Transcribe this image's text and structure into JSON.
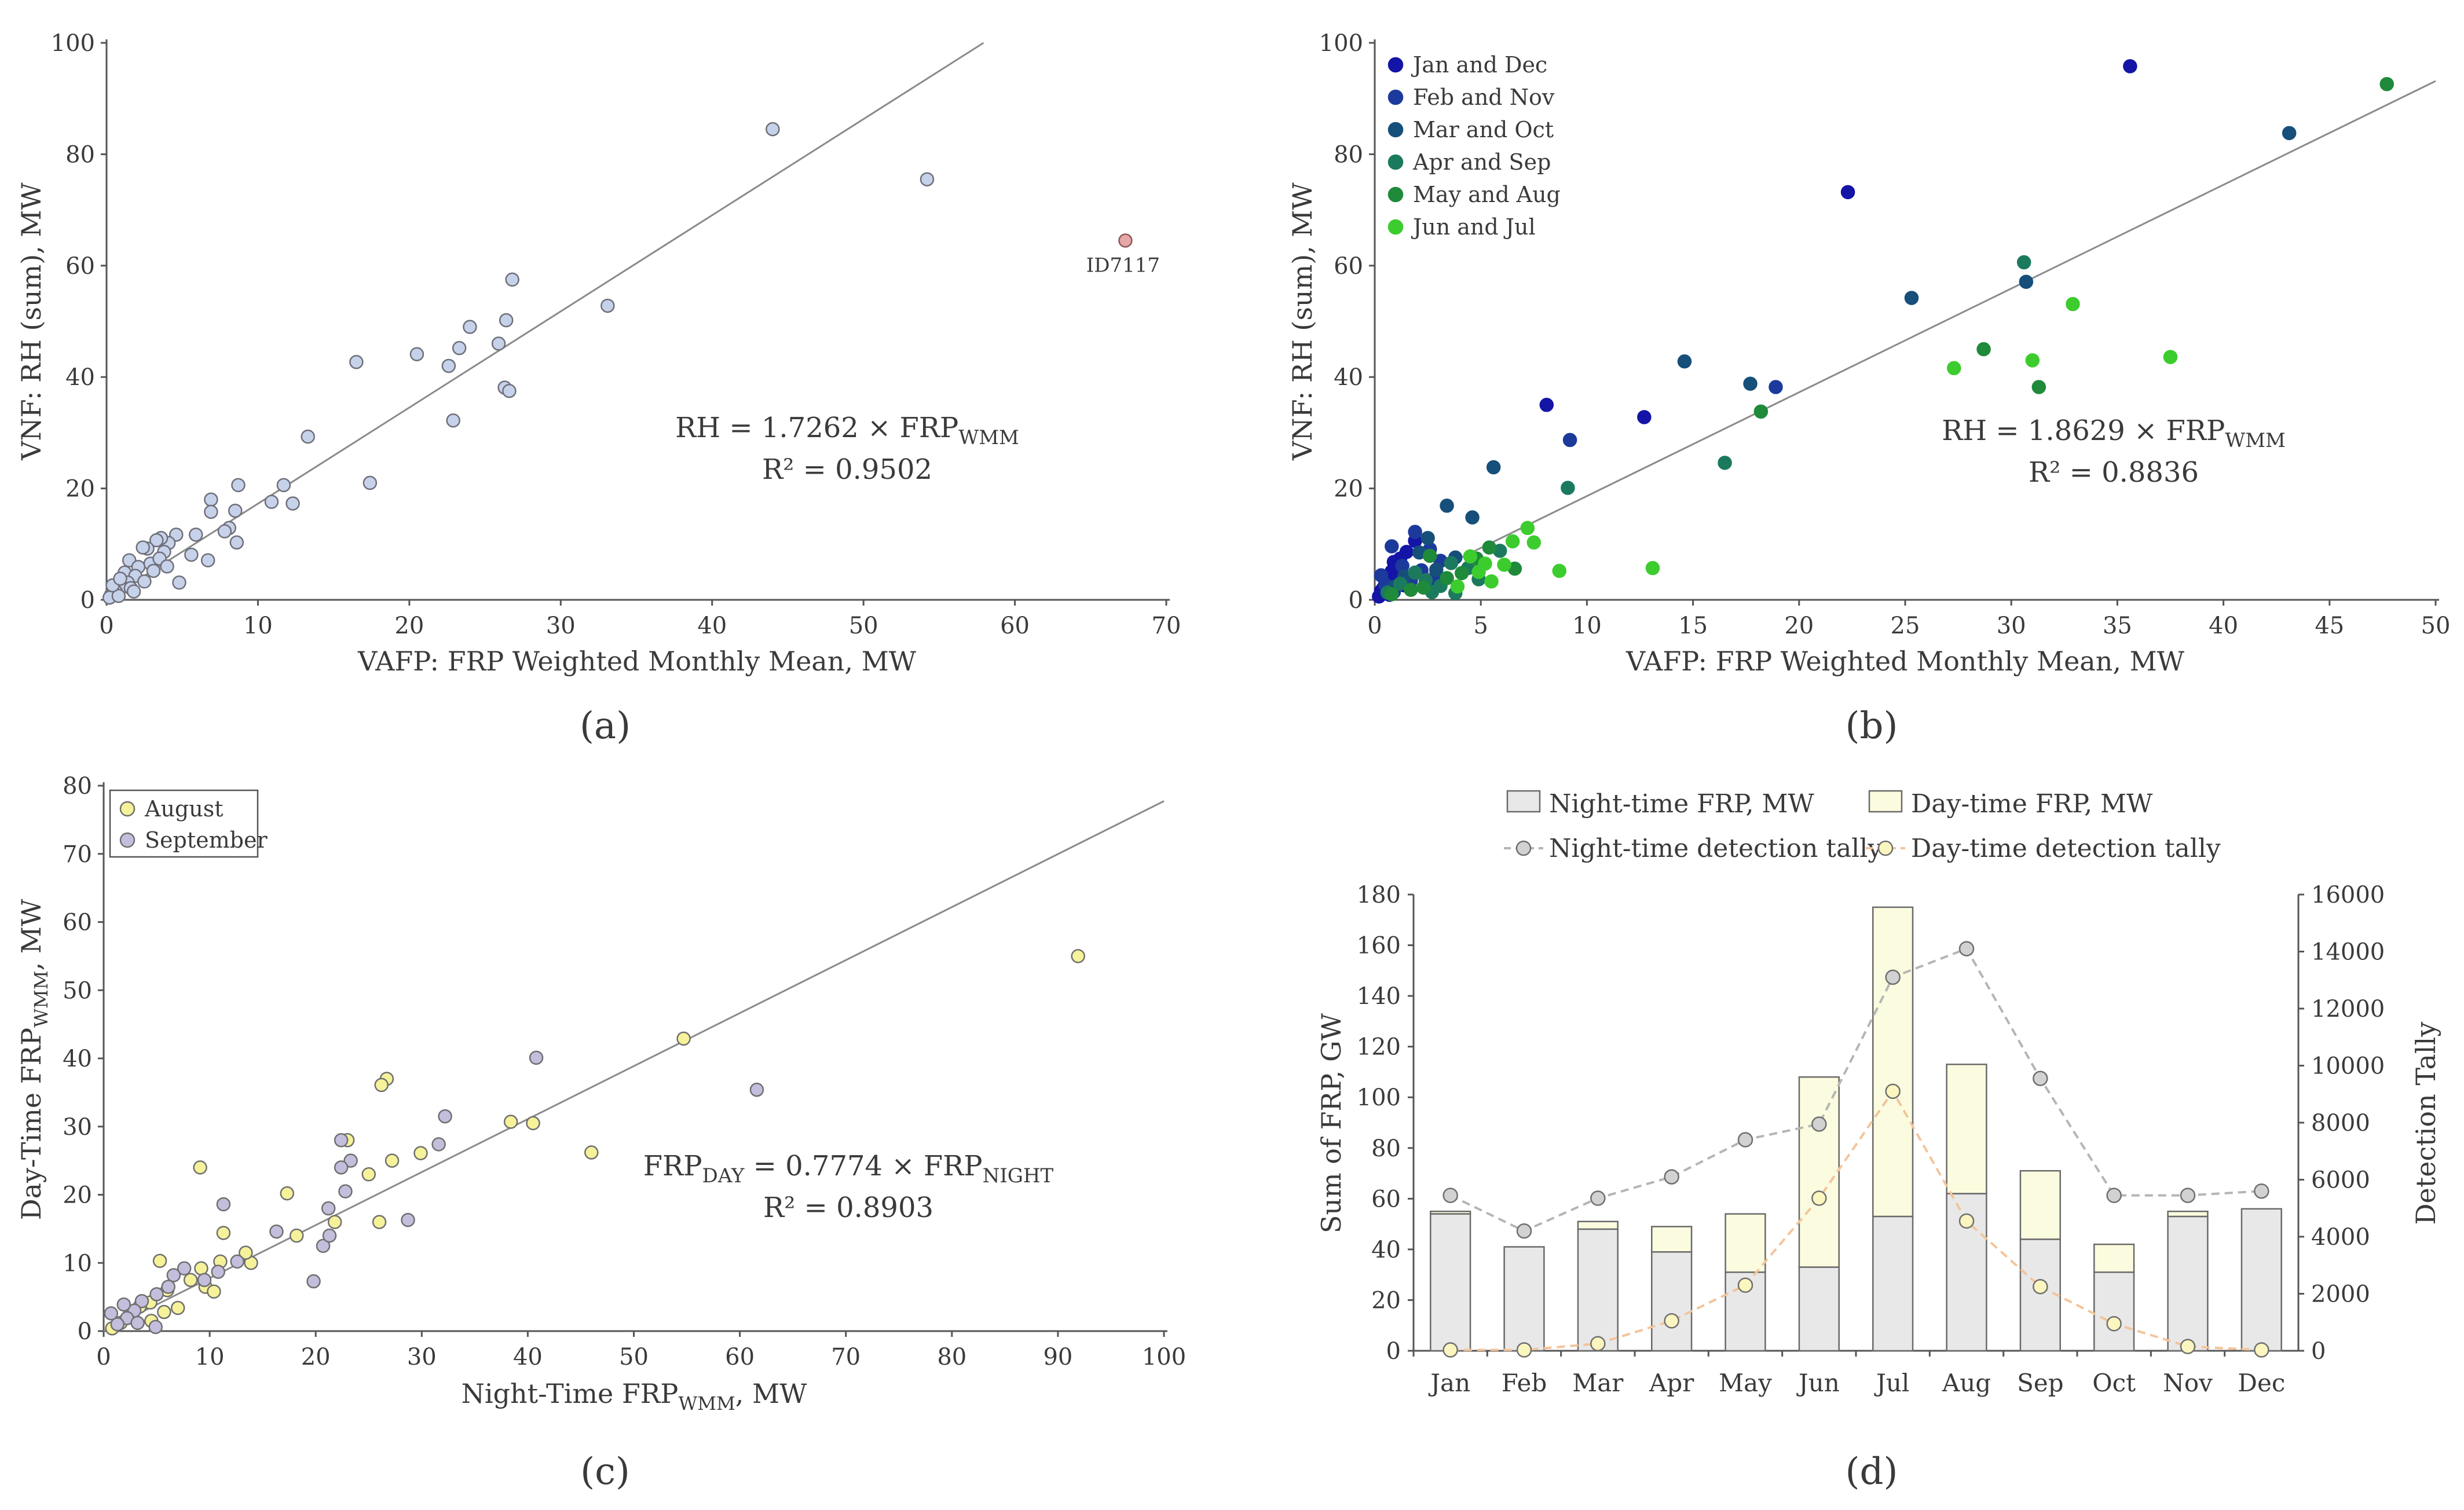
{
  "panel_labels": [
    "(a)",
    "(b)",
    "(c)",
    "(d)"
  ],
  "chart_data": [
    {
      "id": "a",
      "type": "scatter",
      "xlabel": "VAFP: FRP Weighted Monthly Mean, MW",
      "ylabel": "VNF: RH (sum), MW",
      "xlim": [
        0,
        70
      ],
      "ylim": [
        0,
        100
      ],
      "xticks": [
        0,
        10,
        20,
        30,
        40,
        50,
        60,
        70
      ],
      "yticks": [
        0,
        20,
        40,
        60,
        80,
        100
      ],
      "fit": {
        "slope": 1.7262
      },
      "equation": {
        "lhs": "RH = 1.7262 × FRP",
        "sub": "WMM"
      },
      "r2": "R² = 0.9502",
      "outlier": {
        "x": 67.3,
        "y": 64.5,
        "label": "ID7117",
        "color": "#e8a6a6"
      },
      "point_color": "#c6d2ea",
      "points": [
        [
          44.0,
          84.5
        ],
        [
          54.2,
          75.5
        ],
        [
          33.1,
          52.8
        ],
        [
          26.8,
          57.5
        ],
        [
          26.4,
          50.2
        ],
        [
          24.0,
          49.0
        ],
        [
          20.5,
          44.1
        ],
        [
          23.3,
          45.2
        ],
        [
          22.6,
          42.0
        ],
        [
          25.9,
          46.0
        ],
        [
          16.5,
          42.7
        ],
        [
          26.3,
          38.1
        ],
        [
          26.6,
          37.5
        ],
        [
          22.9,
          32.2
        ],
        [
          13.3,
          29.3
        ],
        [
          17.4,
          21.0
        ],
        [
          11.7,
          20.6
        ],
        [
          10.9,
          17.6
        ],
        [
          12.3,
          17.3
        ],
        [
          8.7,
          20.6
        ],
        [
          6.9,
          18.0
        ],
        [
          6.9,
          15.8
        ],
        [
          8.5,
          16.0
        ],
        [
          8.1,
          12.9
        ],
        [
          7.8,
          12.3
        ],
        [
          8.6,
          10.3
        ],
        [
          5.9,
          11.7
        ],
        [
          5.6,
          8.1
        ],
        [
          6.7,
          7.1
        ],
        [
          4.8,
          3.1
        ],
        [
          4.6,
          11.7
        ],
        [
          4.1,
          10.2
        ],
        [
          3.6,
          11.1
        ],
        [
          3.3,
          10.7
        ],
        [
          2.7,
          9.2
        ],
        [
          2.4,
          9.4
        ],
        [
          3.8,
          8.6
        ],
        [
          2.9,
          6.5
        ],
        [
          3.1,
          5.2
        ],
        [
          1.5,
          7.1
        ],
        [
          1.2,
          4.9
        ],
        [
          2.1,
          5.9
        ],
        [
          1.9,
          4.3
        ],
        [
          1.4,
          3.1
        ],
        [
          1.0,
          2.3
        ],
        [
          0.6,
          1.5
        ],
        [
          0.3,
          0.9
        ],
        [
          0.2,
          0.4
        ],
        [
          0.8,
          0.7
        ],
        [
          1.6,
          2.1
        ],
        [
          2.5,
          3.3
        ],
        [
          0.4,
          2.6
        ],
        [
          0.9,
          3.8
        ],
        [
          3.5,
          7.4
        ],
        [
          1.8,
          1.5
        ],
        [
          4.0,
          6.0
        ]
      ]
    },
    {
      "id": "b",
      "type": "scatter",
      "xlabel": "VAFP: FRP Weighted Monthly Mean, MW",
      "ylabel": "VNF: RH (sum), MW",
      "xlim": [
        0,
        50
      ],
      "ylim": [
        0,
        100
      ],
      "xticks": [
        0,
        5,
        10,
        15,
        20,
        25,
        30,
        35,
        40,
        45,
        50
      ],
      "yticks": [
        0,
        20,
        40,
        60,
        80,
        100
      ],
      "fit": {
        "slope": 1.8629
      },
      "equation": {
        "lhs": "RH = 1.8629 × FRP",
        "sub": "WMM"
      },
      "r2": "R² = 0.8836",
      "legend_position": "top-left",
      "series": [
        {
          "name": "Jan and Dec",
          "color": "#1414a6",
          "points": [
            [
              35.6,
              95.8
            ],
            [
              22.3,
              73.2
            ],
            [
              12.7,
              32.8
            ],
            [
              8.1,
              35.0
            ],
            [
              1.9,
              10.6
            ],
            [
              1.2,
              7.4
            ],
            [
              0.8,
              5.1
            ],
            [
              0.5,
              3.2
            ],
            [
              0.3,
              1.6
            ],
            [
              0.2,
              0.6
            ],
            [
              1.5,
              8.6
            ],
            [
              0.9,
              6.8
            ],
            [
              1.1,
              4.3
            ],
            [
              0.4,
              2.1
            ],
            [
              0.6,
              3.9
            ],
            [
              1.4,
              2.6
            ],
            [
              0.7,
              0.9
            ]
          ]
        },
        {
          "name": "Feb and Nov",
          "color": "#1c3a9c",
          "points": [
            [
              18.9,
              38.2
            ],
            [
              9.2,
              28.7
            ],
            [
              1.9,
              12.2
            ],
            [
              0.8,
              9.6
            ],
            [
              2.6,
              9.1
            ],
            [
              1.3,
              6.1
            ],
            [
              3.1,
              7.0
            ],
            [
              2.2,
              5.3
            ],
            [
              0.5,
              2.7
            ],
            [
              0.9,
              1.4
            ],
            [
              1.7,
              3.4
            ],
            [
              0.3,
              4.4
            ],
            [
              2.8,
              3.7
            ]
          ]
        },
        {
          "name": "Mar and Oct",
          "color": "#164f7a",
          "points": [
            [
              43.1,
              83.8
            ],
            [
              25.3,
              54.2
            ],
            [
              30.7,
              57.1
            ],
            [
              17.7,
              38.8
            ],
            [
              14.6,
              42.8
            ],
            [
              5.6,
              23.8
            ],
            [
              3.4,
              16.9
            ],
            [
              4.6,
              14.8
            ],
            [
              2.5,
              11.1
            ],
            [
              2.1,
              8.5
            ],
            [
              3.8,
              7.6
            ],
            [
              2.9,
              5.4
            ],
            [
              1.4,
              4.2
            ],
            [
              0.9,
              2.3
            ]
          ]
        },
        {
          "name": "Apr and Sep",
          "color": "#1b7a5e",
          "points": [
            [
              30.6,
              60.6
            ],
            [
              16.5,
              24.6
            ],
            [
              9.1,
              20.1
            ],
            [
              5.9,
              8.8
            ],
            [
              4.4,
              5.7
            ],
            [
              3.6,
              6.6
            ],
            [
              2.4,
              3.5
            ],
            [
              1.9,
              4.9
            ],
            [
              3.1,
              2.5
            ],
            [
              1.2,
              2.9
            ],
            [
              0.6,
              1.3
            ],
            [
              2.7,
              1.4
            ],
            [
              4.9,
              3.7
            ],
            [
              3.8,
              1.2
            ]
          ]
        },
        {
          "name": "May and Aug",
          "color": "#1e8a3a",
          "points": [
            [
              47.7,
              92.6
            ],
            [
              31.3,
              38.2
            ],
            [
              18.2,
              33.8
            ],
            [
              28.7,
              45.0
            ],
            [
              5.4,
              9.4
            ],
            [
              4.8,
              7.4
            ],
            [
              6.6,
              5.6
            ],
            [
              3.4,
              3.9
            ],
            [
              2.6,
              7.9
            ],
            [
              1.7,
              1.8
            ],
            [
              4.1,
              4.8
            ],
            [
              2.3,
              2.2
            ],
            [
              0.8,
              1.0
            ]
          ]
        },
        {
          "name": "Jun and Jul",
          "color": "#3ccc2e",
          "points": [
            [
              32.9,
              53.1
            ],
            [
              27.3,
              41.6
            ],
            [
              31.0,
              43.0
            ],
            [
              37.5,
              43.6
            ],
            [
              13.1,
              5.7
            ],
            [
              7.2,
              12.9
            ],
            [
              7.5,
              10.3
            ],
            [
              6.5,
              10.5
            ],
            [
              8.7,
              5.2
            ],
            [
              5.2,
              6.5
            ],
            [
              4.5,
              7.8
            ],
            [
              6.1,
              6.3
            ],
            [
              5.5,
              3.3
            ],
            [
              3.9,
              2.4
            ],
            [
              4.9,
              5.0
            ]
          ]
        }
      ]
    },
    {
      "id": "c",
      "type": "scatter",
      "xlabel": "Night-Time FRP",
      "xlabel_sub": "WMM",
      "xlabel_tail": ", MW",
      "ylabel": "Day-Time FRP",
      "ylabel_sub": "WMM",
      "ylabel_tail": ", MW",
      "xlim": [
        0,
        100
      ],
      "ylim": [
        0,
        80
      ],
      "xticks": [
        0,
        10,
        20,
        30,
        40,
        50,
        60,
        70,
        80,
        90,
        100
      ],
      "yticks": [
        0,
        10,
        20,
        30,
        40,
        50,
        60,
        70,
        80
      ],
      "fit": {
        "slope": 0.7774
      },
      "equation": {
        "lhs": "FRP",
        "lhs_sub": "DAY",
        "mid": " = 0.7774 × FRP",
        "rhs_sub": "NIGHT"
      },
      "r2": "R² = 0.8903",
      "legend_position": "top-left",
      "series": [
        {
          "name": "August",
          "color": "#f5f29a",
          "points": [
            [
              91.9,
              55.0
            ],
            [
              54.7,
              42.9
            ],
            [
              38.4,
              30.7
            ],
            [
              40.5,
              30.5
            ],
            [
              46.0,
              26.2
            ],
            [
              26.7,
              37.0
            ],
            [
              26.2,
              36.1
            ],
            [
              23.0,
              28.0
            ],
            [
              27.2,
              25.0
            ],
            [
              29.9,
              26.1
            ],
            [
              25.0,
              23.0
            ],
            [
              9.1,
              24.0
            ],
            [
              17.3,
              20.2
            ],
            [
              21.8,
              16.0
            ],
            [
              26.0,
              16.0
            ],
            [
              18.2,
              14.0
            ],
            [
              11.3,
              14.4
            ],
            [
              13.9,
              10.0
            ],
            [
              13.4,
              11.5
            ],
            [
              11.0,
              10.2
            ],
            [
              9.2,
              9.2
            ],
            [
              8.2,
              7.5
            ],
            [
              9.6,
              6.5
            ],
            [
              10.4,
              5.8
            ],
            [
              5.3,
              10.3
            ],
            [
              6.0,
              6.0
            ],
            [
              4.4,
              4.2
            ],
            [
              3.4,
              3.6
            ],
            [
              2.5,
              2.5
            ],
            [
              1.6,
              1.2
            ],
            [
              0.8,
              0.4
            ],
            [
              5.7,
              2.8
            ],
            [
              7.0,
              3.4
            ],
            [
              4.5,
              1.5
            ]
          ]
        },
        {
          "name": "September",
          "color": "#c4bedd",
          "points": [
            [
              61.6,
              35.4
            ],
            [
              40.8,
              40.1
            ],
            [
              32.2,
              31.5
            ],
            [
              31.6,
              27.4
            ],
            [
              22.4,
              28.0
            ],
            [
              23.3,
              25.0
            ],
            [
              22.4,
              24.0
            ],
            [
              22.8,
              20.5
            ],
            [
              28.7,
              16.3
            ],
            [
              21.2,
              18.0
            ],
            [
              11.3,
              18.6
            ],
            [
              16.3,
              14.6
            ],
            [
              19.8,
              7.3
            ],
            [
              20.7,
              12.5
            ],
            [
              21.3,
              14.0
            ],
            [
              12.6,
              10.2
            ],
            [
              10.8,
              8.7
            ],
            [
              9.5,
              7.5
            ],
            [
              7.6,
              9.2
            ],
            [
              6.6,
              8.2
            ],
            [
              6.1,
              6.5
            ],
            [
              5.0,
              5.4
            ],
            [
              3.6,
              4.4
            ],
            [
              2.9,
              3.0
            ],
            [
              2.2,
              1.9
            ],
            [
              1.3,
              1.0
            ],
            [
              0.7,
              2.6
            ],
            [
              3.2,
              1.2
            ],
            [
              4.9,
              0.6
            ],
            [
              1.9,
              3.9
            ]
          ]
        }
      ]
    },
    {
      "id": "d",
      "type": "bar",
      "categories": [
        "Jan",
        "Feb",
        "Mar",
        "Apr",
        "May",
        "Jun",
        "Jul",
        "Aug",
        "Sep",
        "Oct",
        "Nov",
        "Dec"
      ],
      "ylabel": "Sum of FRP, GW",
      "y2label": "Detection Tally",
      "ylim": [
        0,
        180
      ],
      "y2lim": [
        0,
        16000
      ],
      "yticks": [
        0,
        20,
        40,
        60,
        80,
        100,
        120,
        140,
        160,
        180
      ],
      "y2ticks": [
        0,
        2000,
        4000,
        6000,
        8000,
        10000,
        12000,
        14000,
        16000
      ],
      "legend_position": "top",
      "series": [
        {
          "name": "Night-time FRP, MW",
          "kind": "bar",
          "color": "#e8e8e8",
          "values": [
            54,
            41,
            48,
            39,
            31,
            33,
            53,
            62,
            44,
            31,
            53,
            56
          ]
        },
        {
          "name": "Day-time FRP, MW",
          "kind": "bar",
          "color": "#fbfbdf",
          "values": [
            1,
            0,
            3,
            10,
            23,
            75,
            122,
            51,
            27,
            11,
            2,
            0
          ]
        },
        {
          "name": "Night-time detection tally",
          "kind": "line",
          "axis": "right",
          "color": "#b5b5b5",
          "values": [
            5450,
            4200,
            5350,
            6100,
            7400,
            7950,
            13100,
            14100,
            9550,
            5450,
            5450,
            5600
          ]
        },
        {
          "name": "Day-time detection tally",
          "kind": "line",
          "axis": "right",
          "color": "#f3c49a",
          "values": [
            30,
            30,
            250,
            1050,
            2300,
            5350,
            9100,
            4550,
            2250,
            950,
            150,
            30
          ]
        }
      ]
    }
  ]
}
